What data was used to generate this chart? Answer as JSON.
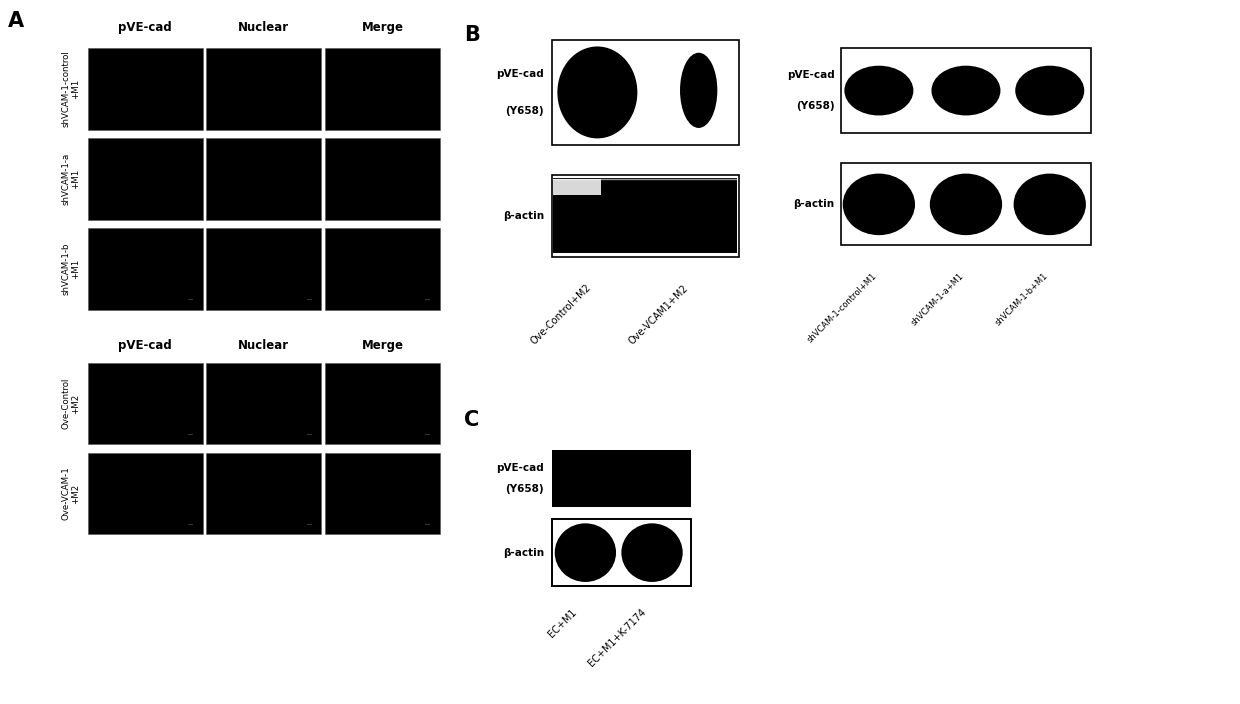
{
  "bg_color": "#ffffff",
  "fig_w": 12.4,
  "fig_h": 7.04,
  "panel_A": {
    "label": "A",
    "top_col_labels": [
      "pVE-cad",
      "Nuclear",
      "Merge"
    ],
    "row_labels_top": [
      "shVCAM-1-control\n+M1",
      "shVCAM-1-a\n+M1",
      "shVCAM-1-b\n+M1"
    ],
    "mid_col_labels": [
      "pVE-cad",
      "Nuclear",
      "Merge"
    ],
    "row_labels_bot": [
      "Ove-Control\n+M2",
      "Ove-VCAM-1\n+M2"
    ]
  },
  "panel_B_left": {
    "label": "B",
    "row1_label_line1": "pVE-cad",
    "row1_label_line2": "(Y658)",
    "row2_label": "β-actin",
    "xlabels": [
      "Ove-Control+M2",
      "Ove-VCAM1+M2"
    ]
  },
  "panel_B_right": {
    "row1_label_line1": "pVE-cad",
    "row1_label_line2": "(Y658)",
    "row2_label": "β-actin",
    "xlabels": [
      "shVCAM-1-control+M1",
      "shVCAM-1-a+M1",
      "shVCAM-1-b+M1"
    ]
  },
  "panel_C": {
    "label": "C",
    "row1_label_line1": "pVE-cad",
    "row1_label_line2": "(Y658)",
    "row2_label": "β-actin",
    "xlabels": [
      "EC+M1",
      "EC+M1+K-7174"
    ]
  }
}
